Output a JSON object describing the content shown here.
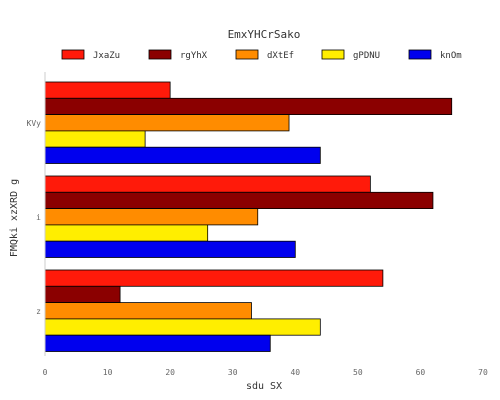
{
  "chart_data": {
    "type": "bar",
    "orientation": "horizontal",
    "title": "EmxYHCrSako",
    "xlabel": "sdu SX",
    "ylabel": "FMQki xzXRD g",
    "xlim": [
      0,
      70
    ],
    "xticks": [
      0,
      10,
      20,
      30,
      40,
      50,
      60,
      70
    ],
    "categories": [
      "KVy",
      "i",
      "z"
    ],
    "legend_position": "top",
    "grid": false,
    "series": [
      {
        "name": "JxaZu",
        "color": "#ff1a0a",
        "values": [
          20,
          52,
          54
        ]
      },
      {
        "name": "rgYhX",
        "color": "#8b0000",
        "values": [
          65,
          62,
          12
        ]
      },
      {
        "name": "dXtEf",
        "color": "#ff8c00",
        "values": [
          39,
          34,
          33
        ]
      },
      {
        "name": "gPDNU",
        "color": "#ffee00",
        "values": [
          16,
          26,
          44
        ]
      },
      {
        "name": "knOm",
        "color": "#0000ee",
        "values": [
          44,
          40,
          36
        ]
      }
    ]
  }
}
